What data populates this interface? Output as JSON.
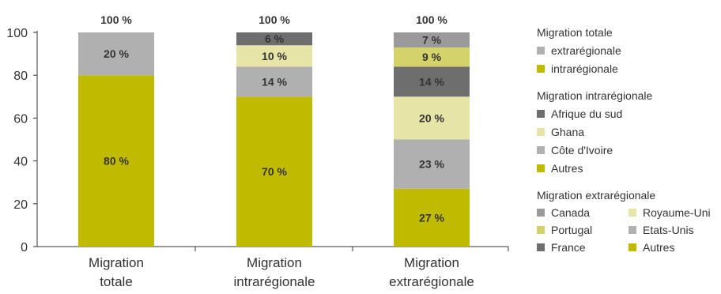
{
  "chart_data": {
    "type": "bar",
    "stacked": true,
    "categories": [
      [
        "Migration",
        "totale"
      ],
      [
        "Migration",
        "intrarégionale"
      ],
      [
        "Migration",
        "extrarégionale"
      ]
    ],
    "totals": [
      "100 %",
      "100 %",
      "100 %"
    ],
    "ylim": [
      0,
      100
    ],
    "yticks": [
      "0",
      "20",
      "40",
      "60",
      "80",
      "100"
    ],
    "grid": false,
    "stacks": [
      [
        {
          "name": "intrarégionale",
          "value": 80,
          "label": "80 %",
          "color": "#c0bb00"
        },
        {
          "name": "extrarégionale",
          "value": 20,
          "label": "20 %",
          "color": "#b0b0b0"
        }
      ],
      [
        {
          "name": "Autres",
          "value": 70,
          "label": "70 %",
          "color": "#c0bb00"
        },
        {
          "name": "Côte d'Ivoire",
          "value": 14,
          "label": "14 %",
          "color": "#b0b0b0"
        },
        {
          "name": "Ghana",
          "value": 10,
          "label": "10 %",
          "color": "#e6e4a6"
        },
        {
          "name": "Afrique du sud",
          "value": 6,
          "label": "6 %",
          "color": "#6e6e6e"
        }
      ],
      [
        {
          "name": "Autres",
          "value": 27,
          "label": "27 %",
          "color": "#c0bb00"
        },
        {
          "name": "Etats-Unis",
          "value": 23,
          "label": "23 %",
          "color": "#b0b0b0"
        },
        {
          "name": "Royaume-Uni",
          "value": 20,
          "label": "20 %",
          "color": "#e6e4a6"
        },
        {
          "name": "France",
          "value": 14,
          "label": "14 %",
          "color": "#6e6e6e"
        },
        {
          "name": "Portugal",
          "value": 9,
          "label": "9 %",
          "color": "#d4d26a"
        },
        {
          "name": "Canada",
          "value": 7,
          "label": "7 %",
          "color": "#9a9a9a"
        }
      ]
    ]
  },
  "legend": {
    "totale": {
      "title": "Migration totale",
      "items": [
        {
          "label": "extrarégionale",
          "color": "#b0b0b0"
        },
        {
          "label": "intrarégionale",
          "color": "#c0bb00"
        }
      ]
    },
    "intra": {
      "title": "Migration intrarégionale",
      "items": [
        {
          "label": "Afrique du sud",
          "color": "#6e6e6e"
        },
        {
          "label": "Ghana",
          "color": "#e6e4a6"
        },
        {
          "label": "Côte d'Ivoire",
          "color": "#b0b0b0"
        },
        {
          "label": "Autres",
          "color": "#c0bb00"
        }
      ]
    },
    "extra": {
      "title": "Migration extrarégionale",
      "items": [
        {
          "label": "Canada",
          "color": "#9a9a9a"
        },
        {
          "label": "Royaume-Uni",
          "color": "#e6e4a6"
        },
        {
          "label": "Portugal",
          "color": "#d4d26a"
        },
        {
          "label": "Etats-Unis",
          "color": "#b0b0b0"
        },
        {
          "label": "France",
          "color": "#6e6e6e"
        },
        {
          "label": "Autres",
          "color": "#c0bb00"
        }
      ]
    }
  }
}
